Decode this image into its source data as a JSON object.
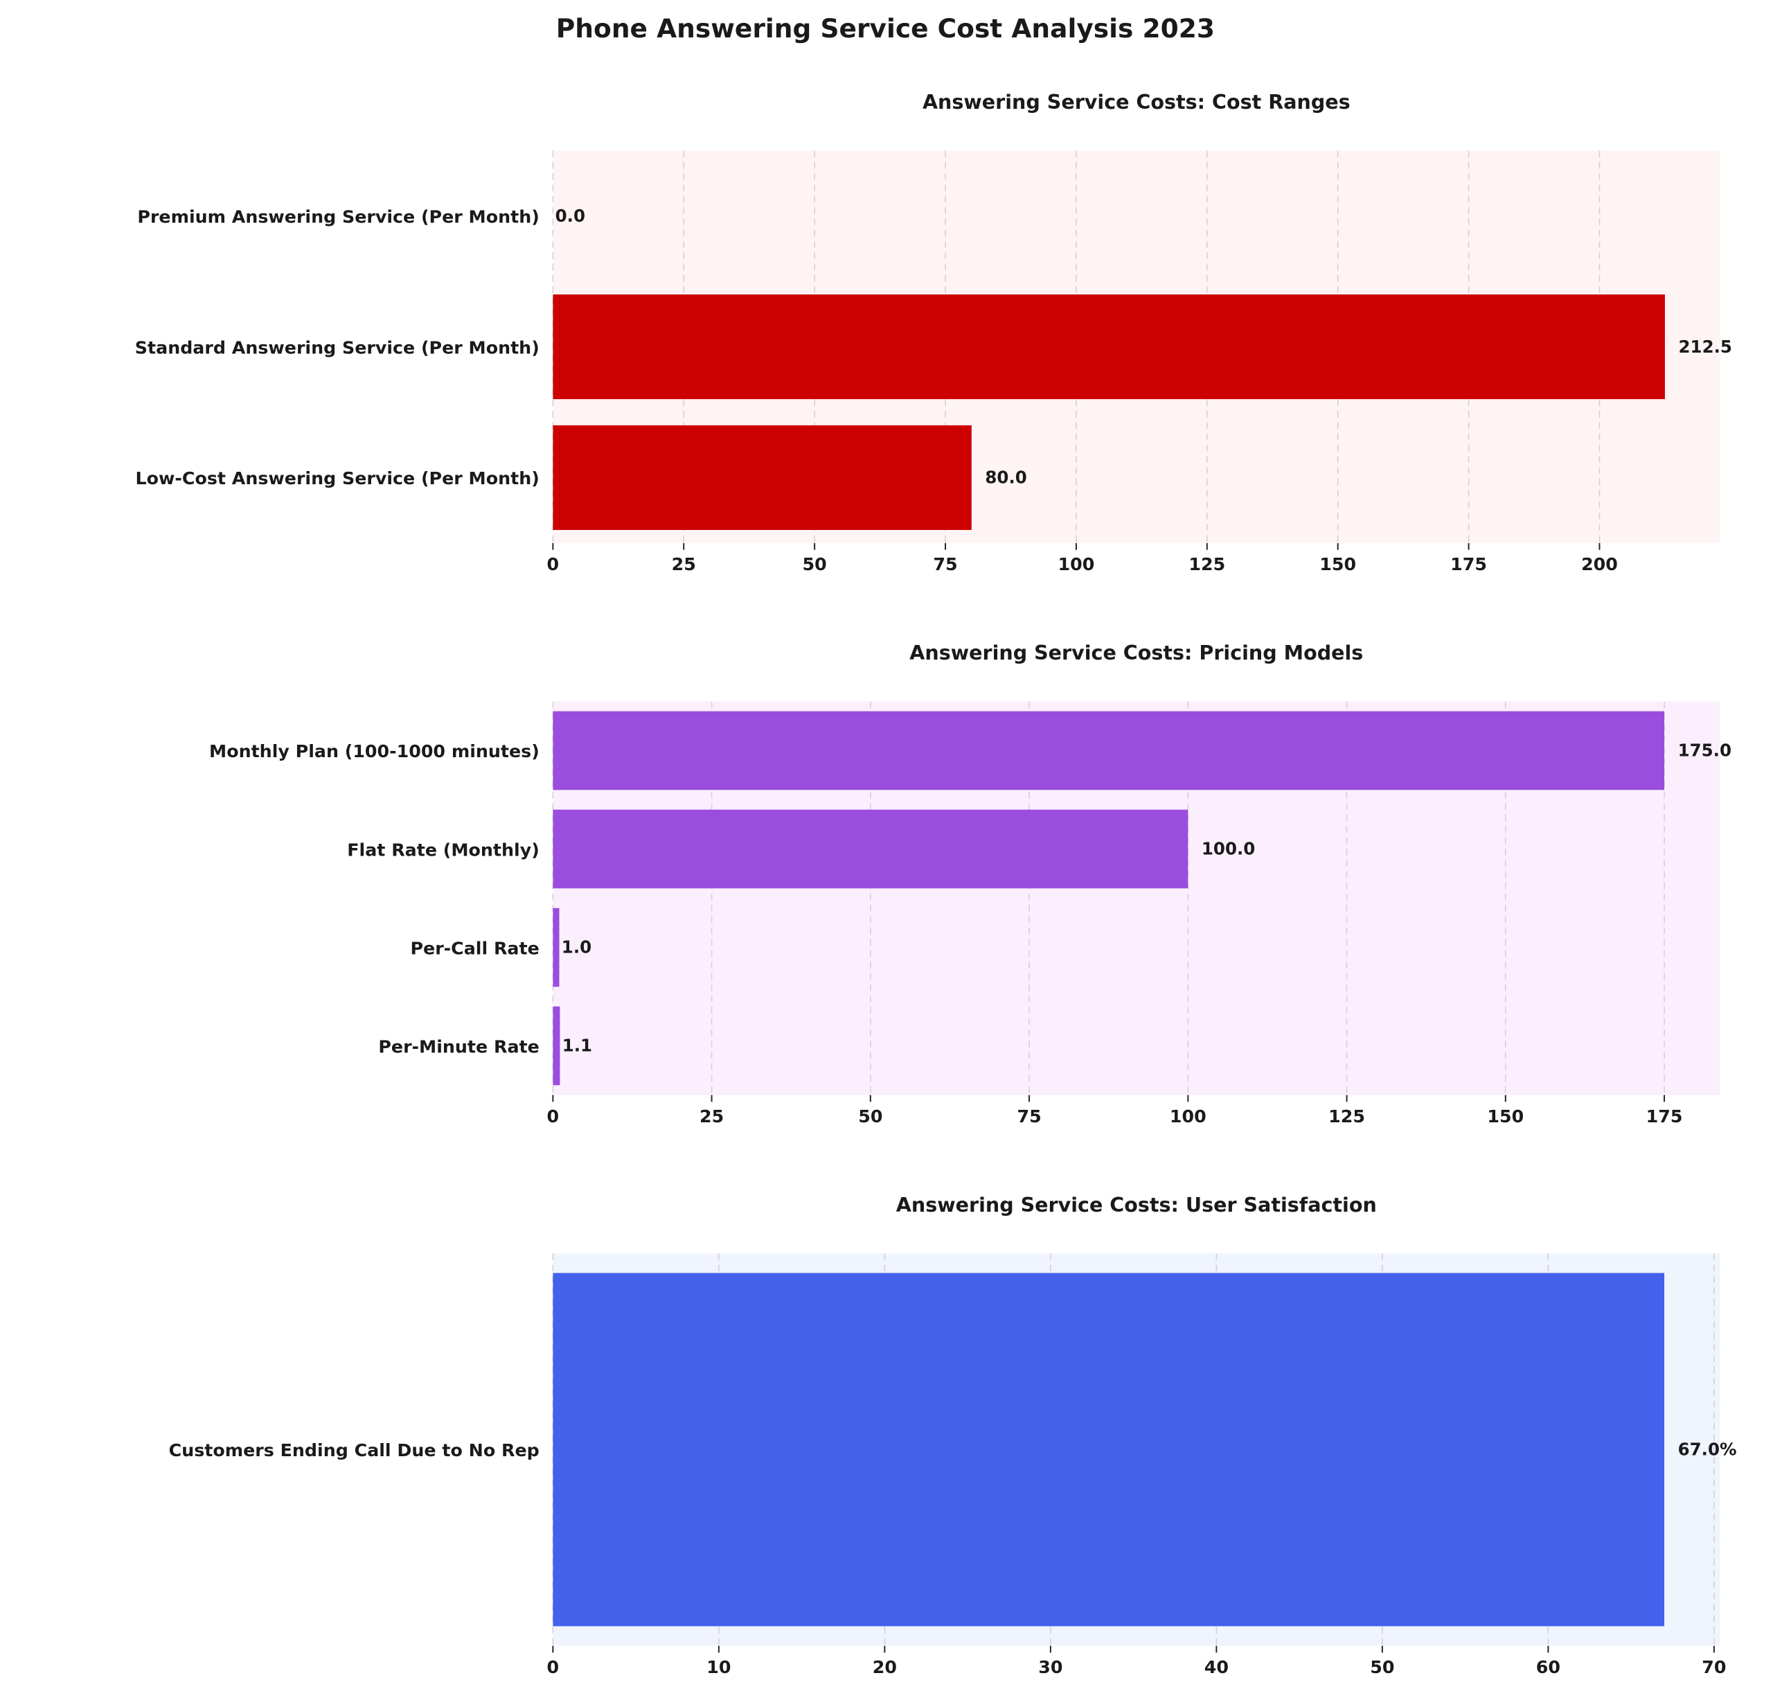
{
  "title": "Phone Answering Service Cost Analysis 2023",
  "chart_data": [
    {
      "type": "bar",
      "orientation": "horizontal",
      "title": "Answering Service Costs: Cost Ranges",
      "categories": [
        "Premium Answering Service (Per Month)",
        "Standard Answering Service (Per Month)",
        "Low-Cost Answering Service (Per Month)"
      ],
      "values": [
        0.0,
        212.5,
        80.0
      ],
      "value_labels": [
        "0.0",
        "212.5",
        "80.0"
      ],
      "xlim": [
        0,
        223
      ],
      "xticks": [
        0,
        25,
        50,
        75,
        100,
        125,
        150,
        175,
        200
      ],
      "grid": true,
      "bar_color": "#cc0000",
      "background": "#fff4f4"
    },
    {
      "type": "bar",
      "orientation": "horizontal",
      "title": "Answering Service Costs: Pricing Models",
      "categories": [
        "Monthly Plan (100-1000 minutes)",
        "Flat Rate (Monthly)",
        "Per-Call Rate",
        "Per-Minute Rate"
      ],
      "values": [
        175.0,
        100.0,
        1.0,
        1.1
      ],
      "value_labels": [
        "175.0",
        "100.0",
        "1.0",
        "1.1"
      ],
      "xlim": [
        0,
        183.75
      ],
      "xticks": [
        0,
        25,
        50,
        75,
        100,
        125,
        150,
        175
      ],
      "grid": true,
      "bar_color": "#9b4ddd",
      "background": "#fbeffe"
    },
    {
      "type": "bar",
      "orientation": "horizontal",
      "title": "Answering Service Costs: User Satisfaction",
      "categories": [
        "Customers Ending Call Due to No Rep"
      ],
      "values": [
        67.0
      ],
      "value_labels": [
        "67.0%"
      ],
      "xlim": [
        0,
        70.35
      ],
      "xticks": [
        0,
        10,
        20,
        30,
        40,
        50,
        60,
        70
      ],
      "grid": true,
      "bar_color": "#4361ea",
      "background": "#eff4fd"
    }
  ]
}
